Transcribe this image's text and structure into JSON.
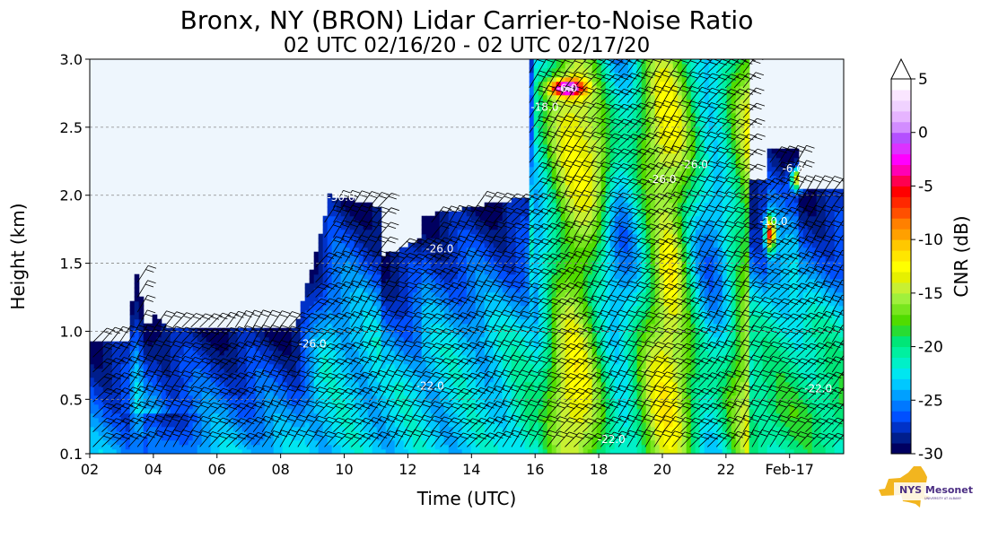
{
  "chart_data": {
    "type": "heatmap",
    "title": "Bronx, NY (BRON) Lidar Carrier-to-Noise Ratio",
    "subtitle": "02 UTC 02/16/20 - 02 UTC 02/17/20",
    "xlabel": "Time (UTC)",
    "ylabel": "Height (km)",
    "xlim": [
      2,
      25.7
    ],
    "ylim": [
      0.1,
      3.0
    ],
    "x_ticks": [
      {
        "value": 2,
        "label": "02"
      },
      {
        "value": 4,
        "label": "04"
      },
      {
        "value": 6,
        "label": "06"
      },
      {
        "value": 8,
        "label": "08"
      },
      {
        "value": 10,
        "label": "10"
      },
      {
        "value": 12,
        "label": "12"
      },
      {
        "value": 14,
        "label": "14"
      },
      {
        "value": 16,
        "label": "16"
      },
      {
        "value": 18,
        "label": "18"
      },
      {
        "value": 20,
        "label": "20"
      },
      {
        "value": 22,
        "label": "22"
      },
      {
        "value": 24,
        "label": "Feb-17"
      }
    ],
    "y_ticks": [
      {
        "value": 0.1,
        "label": "0.1"
      },
      {
        "value": 0.5,
        "label": "0.5"
      },
      {
        "value": 1.0,
        "label": "1.0"
      },
      {
        "value": 1.5,
        "label": "1.5"
      },
      {
        "value": 2.0,
        "label": "2.0"
      },
      {
        "value": 2.5,
        "label": "2.5"
      },
      {
        "value": 3.0,
        "label": "3.0"
      }
    ],
    "grid": "horizontal dashed",
    "colorbar": {
      "label": "CNR (dB)",
      "range": [
        -30,
        5
      ],
      "ticks": [
        "5",
        "0",
        "-5",
        "-10",
        "-15",
        "-20",
        "-25",
        "-30"
      ],
      "tick_values": [
        5,
        0,
        -5,
        -10,
        -15,
        -20,
        -25,
        -30
      ],
      "extend": "max",
      "colors": [
        "#000060",
        "#001e8c",
        "#0032c8",
        "#0050ff",
        "#0078ff",
        "#00a0ff",
        "#00c8ff",
        "#00e6f0",
        "#00f0c8",
        "#00f0a0",
        "#00e678",
        "#28dc32",
        "#50dc00",
        "#78e61e",
        "#a0f03c",
        "#c8f032",
        "#e6f000",
        "#ffff00",
        "#ffe600",
        "#ffc800",
        "#ffa000",
        "#ff8000",
        "#ff5000",
        "#ff2800",
        "#ff0000",
        "#ff0050",
        "#ff00b4",
        "#ff00ff",
        "#dc32ff",
        "#b450ff",
        "#d28cff",
        "#e6b4ff",
        "#f0d2ff",
        "#fae6ff",
        "#ffffff"
      ]
    },
    "background_color": "#eef6fd",
    "contour_labels": [
      {
        "x": 9.9,
        "y": 1.96,
        "text": "-30.0"
      },
      {
        "x": 13.0,
        "y": 1.58,
        "text": "-26.0"
      },
      {
        "x": 9.0,
        "y": 0.88,
        "text": "-26.0"
      },
      {
        "x": 12.7,
        "y": 0.57,
        "text": "-22.0"
      },
      {
        "x": 18.4,
        "y": 0.18,
        "text": "-22.0"
      },
      {
        "x": 16.3,
        "y": 2.62,
        "text": "-18.0"
      },
      {
        "x": 17.0,
        "y": 2.76,
        "text": "-6.0"
      },
      {
        "x": 21.0,
        "y": 2.2,
        "text": "-26.0"
      },
      {
        "x": 20.0,
        "y": 2.09,
        "text": "-26.0"
      },
      {
        "x": 24.1,
        "y": 2.17,
        "text": "-6.0"
      },
      {
        "x": 23.5,
        "y": 1.78,
        "text": "-10.0"
      },
      {
        "x": 24.9,
        "y": 0.55,
        "text": "-22.0"
      }
    ],
    "logo": {
      "text": "NYS Mesonet",
      "subtext": "UNIVERSITY AT ALBANY"
    }
  }
}
